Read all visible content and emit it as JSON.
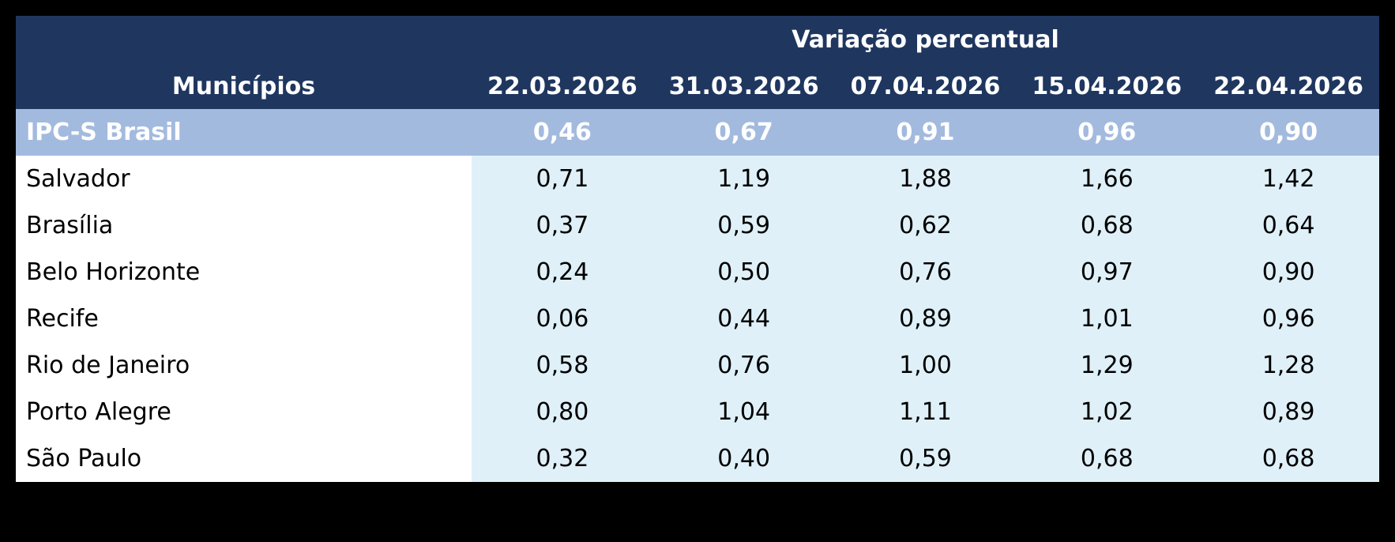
{
  "header": {
    "group_label": "Variação percentual",
    "first_column": "Municípios",
    "dates": [
      "22.03.2026",
      "31.03.2026",
      "07.04.2026",
      "15.04.2026",
      "22.04.2026"
    ]
  },
  "summary_row": {
    "label": "IPC-S Brasil",
    "values": [
      "0,46",
      "0,67",
      "0,91",
      "0,96",
      "0,90"
    ]
  },
  "rows": [
    {
      "label": "Salvador",
      "values": [
        "0,71",
        "1,19",
        "1,88",
        "1,66",
        "1,42"
      ]
    },
    {
      "label": "Brasília",
      "values": [
        "0,37",
        "0,59",
        "0,62",
        "0,68",
        "0,64"
      ]
    },
    {
      "label": "Belo Horizonte",
      "values": [
        "0,24",
        "0,50",
        "0,76",
        "0,97",
        "0,90"
      ]
    },
    {
      "label": "Recife",
      "values": [
        "0,06",
        "0,44",
        "0,89",
        "1,01",
        "0,96"
      ]
    },
    {
      "label": "Rio de Janeiro",
      "values": [
        "0,58",
        "0,76",
        "1,00",
        "1,29",
        "1,28"
      ]
    },
    {
      "label": "Porto Alegre",
      "values": [
        "0,80",
        "1,04",
        "1,11",
        "1,02",
        "0,89"
      ]
    },
    {
      "label": "São Paulo",
      "values": [
        "0,32",
        "0,40",
        "0,59",
        "0,68",
        "0,68"
      ]
    }
  ],
  "colors": {
    "header_bg": "#1f365f",
    "summary_bg": "#a3badf",
    "value_bg": "#dff0f8"
  }
}
